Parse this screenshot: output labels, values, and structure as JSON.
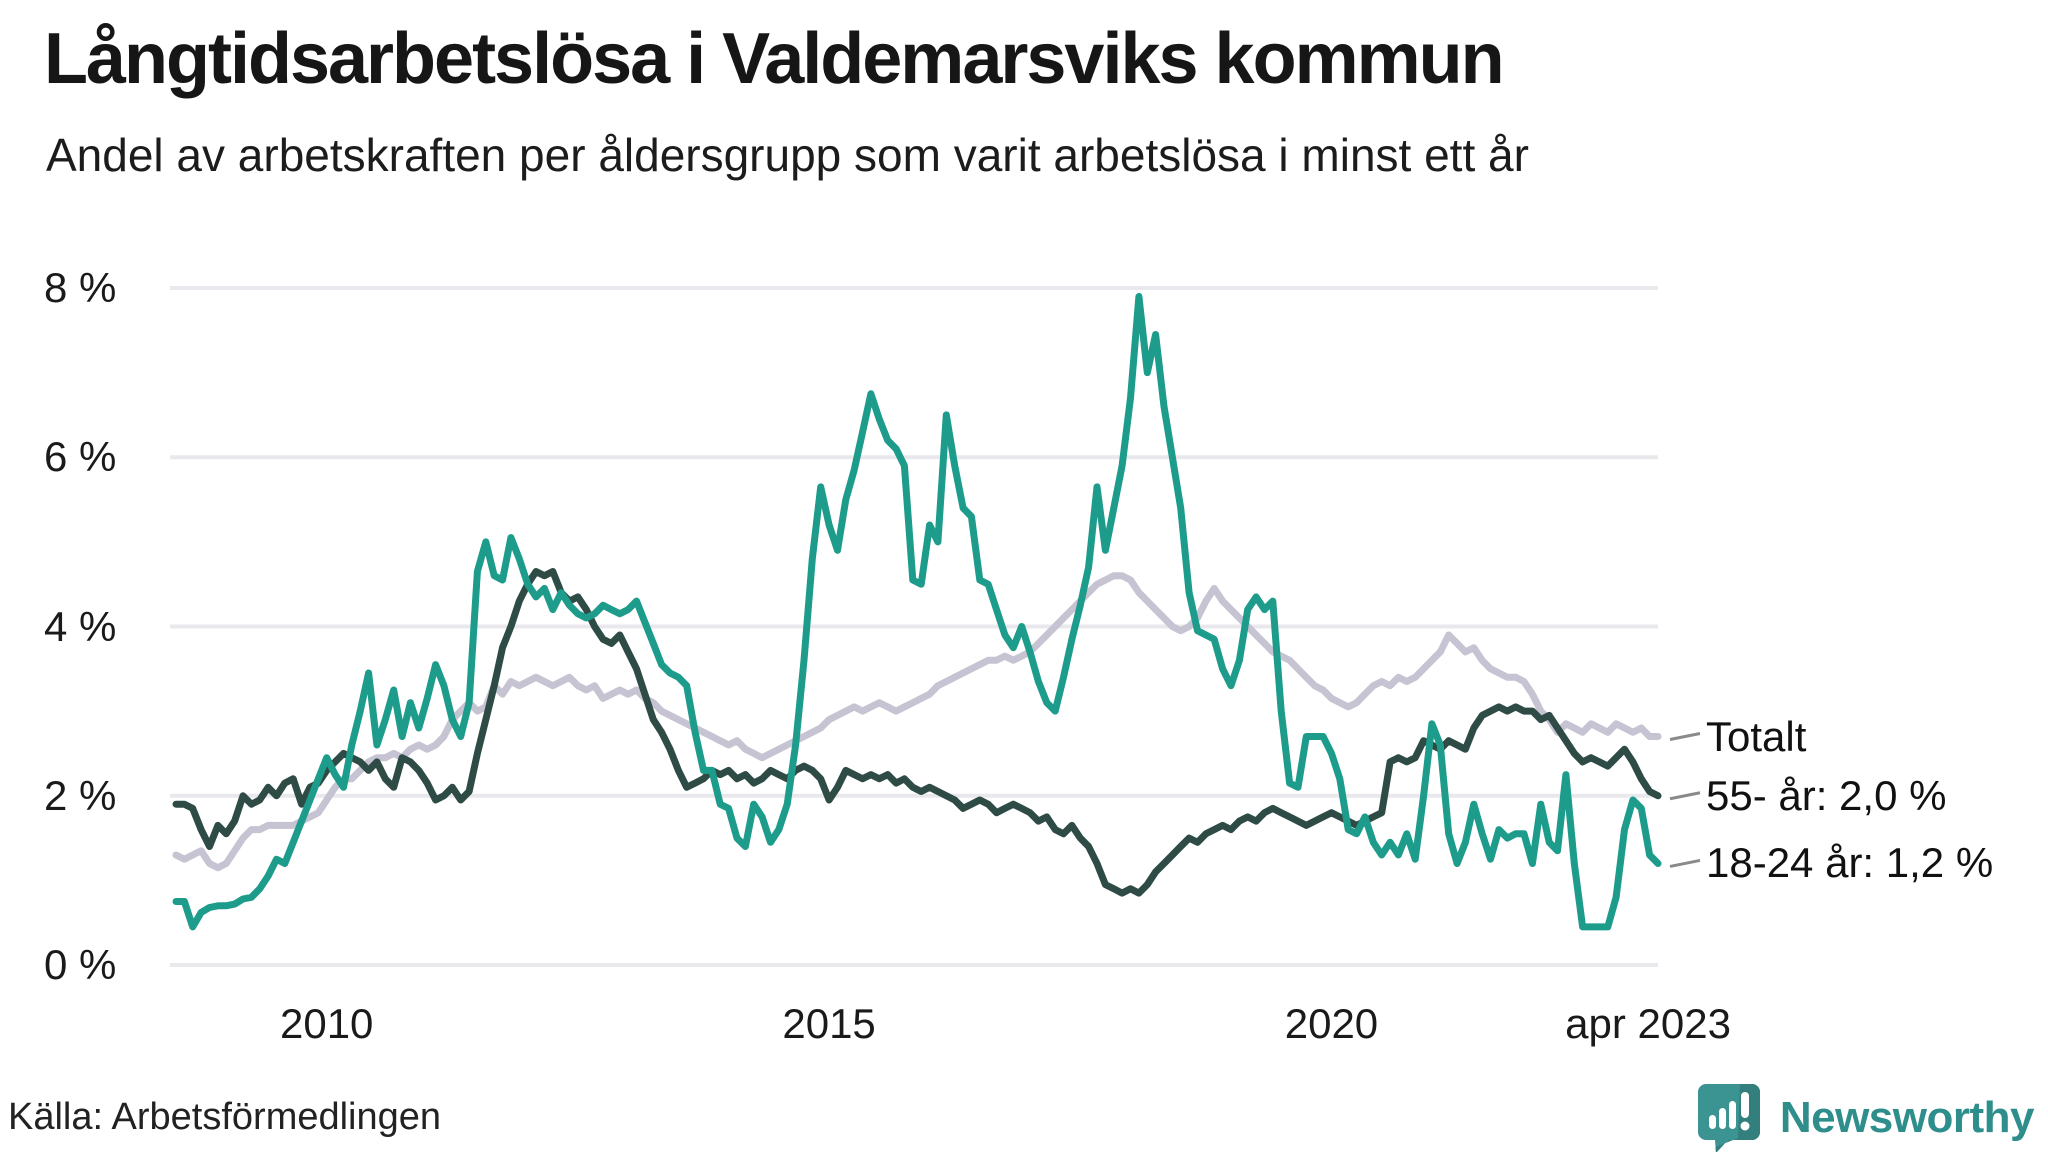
{
  "page": {
    "title": "Långtidsarbetslösa i Valdemarsviks kommun",
    "subtitle": "Andel av arbetskraften per åldersgrupp som varit arbetslösa i minst ett år",
    "source": "Källa: Arbetsförmedlingen",
    "brand_name": "Newsworthy"
  },
  "colors": {
    "background": "#ffffff",
    "text": "#1a1a1a",
    "gridline": "#e9e9ed",
    "leader_dash": "#8a8a8a",
    "series_total": "#c6c3d2",
    "series_55": "#2f4b45",
    "series_18_24": "#1e9c8b",
    "brand_teal": "#3b9492",
    "brand_text_teal": "#2e8e8b"
  },
  "chart_data": {
    "type": "line",
    "title": "Långtidsarbetslösa i Valdemarsviks kommun",
    "subtitle": "Andel av arbetskraften per åldersgrupp som varit arbetslösa i minst ett år",
    "unit": "%",
    "ylim": [
      0,
      8
    ],
    "grid": "horizontal",
    "legend_position": "right-end-labels",
    "frequency": "monthly",
    "x_start": "2008-07",
    "x_end": "2023-04",
    "y_ticks": [
      {
        "value": 8,
        "label": "8 %"
      },
      {
        "value": 6,
        "label": "6 %"
      },
      {
        "value": 4,
        "label": "4 %"
      },
      {
        "value": 2,
        "label": "2 %"
      },
      {
        "value": 0,
        "label": "0 %"
      }
    ],
    "x_ticks": [
      {
        "label": "2010",
        "month_index": 18
      },
      {
        "label": "2015",
        "month_index": 78
      },
      {
        "label": "2020",
        "month_index": 138
      },
      {
        "label": "apr 2023",
        "month_index": 177
      }
    ],
    "series": [
      {
        "name": "Totalt",
        "end_label": "Totalt",
        "end_value": 2.7,
        "color": "#c6c3d2",
        "values": [
          1.3,
          1.25,
          1.3,
          1.35,
          1.2,
          1.15,
          1.2,
          1.35,
          1.5,
          1.6,
          1.6,
          1.65,
          1.65,
          1.65,
          1.65,
          1.7,
          1.75,
          1.8,
          1.95,
          2.1,
          2.2,
          2.2,
          2.3,
          2.4,
          2.45,
          2.45,
          2.5,
          2.45,
          2.55,
          2.6,
          2.55,
          2.6,
          2.7,
          2.9,
          3.0,
          3.1,
          3.0,
          3.05,
          3.3,
          3.2,
          3.35,
          3.3,
          3.35,
          3.4,
          3.35,
          3.3,
          3.35,
          3.4,
          3.3,
          3.25,
          3.3,
          3.15,
          3.2,
          3.25,
          3.2,
          3.25,
          3.15,
          3.1,
          3.0,
          2.95,
          2.9,
          2.85,
          2.8,
          2.75,
          2.7,
          2.65,
          2.6,
          2.65,
          2.55,
          2.5,
          2.45,
          2.5,
          2.55,
          2.6,
          2.65,
          2.7,
          2.75,
          2.8,
          2.9,
          2.95,
          3.0,
          3.05,
          3.0,
          3.05,
          3.1,
          3.05,
          3.0,
          3.05,
          3.1,
          3.15,
          3.2,
          3.3,
          3.35,
          3.4,
          3.45,
          3.5,
          3.55,
          3.6,
          3.6,
          3.65,
          3.6,
          3.65,
          3.7,
          3.8,
          3.9,
          4.0,
          4.1,
          4.2,
          4.3,
          4.4,
          4.5,
          4.55,
          4.6,
          4.6,
          4.55,
          4.4,
          4.3,
          4.2,
          4.1,
          4.0,
          3.95,
          4.0,
          4.1,
          4.3,
          4.45,
          4.3,
          4.2,
          4.1,
          4.0,
          3.9,
          3.8,
          3.7,
          3.65,
          3.6,
          3.5,
          3.4,
          3.3,
          3.25,
          3.15,
          3.1,
          3.05,
          3.1,
          3.2,
          3.3,
          3.35,
          3.3,
          3.4,
          3.35,
          3.4,
          3.5,
          3.6,
          3.7,
          3.9,
          3.8,
          3.7,
          3.75,
          3.6,
          3.5,
          3.45,
          3.4,
          3.4,
          3.35,
          3.2,
          3.0,
          2.9,
          2.75,
          2.85,
          2.8,
          2.75,
          2.85,
          2.8,
          2.75,
          2.85,
          2.8,
          2.75,
          2.8,
          2.7,
          2.7
        ]
      },
      {
        "name": "55- år",
        "end_label": "55- år: 2,0 %",
        "end_value": 2.0,
        "color": "#2f4b45",
        "values": [
          1.9,
          1.9,
          1.85,
          1.6,
          1.4,
          1.65,
          1.55,
          1.7,
          2.0,
          1.9,
          1.95,
          2.1,
          2.0,
          2.15,
          2.2,
          1.9,
          2.1,
          2.15,
          2.3,
          2.4,
          2.5,
          2.45,
          2.4,
          2.3,
          2.4,
          2.2,
          2.1,
          2.45,
          2.4,
          2.3,
          2.15,
          1.95,
          2.0,
          2.1,
          1.95,
          2.05,
          2.5,
          2.9,
          3.3,
          3.75,
          4.0,
          4.3,
          4.5,
          4.65,
          4.6,
          4.65,
          4.4,
          4.3,
          4.35,
          4.2,
          4.0,
          3.85,
          3.8,
          3.9,
          3.7,
          3.5,
          3.2,
          2.9,
          2.75,
          2.55,
          2.3,
          2.1,
          2.15,
          2.2,
          2.3,
          2.25,
          2.3,
          2.2,
          2.25,
          2.15,
          2.2,
          2.3,
          2.25,
          2.2,
          2.3,
          2.35,
          2.3,
          2.2,
          1.95,
          2.1,
          2.3,
          2.25,
          2.2,
          2.25,
          2.2,
          2.25,
          2.15,
          2.2,
          2.1,
          2.05,
          2.1,
          2.05,
          2.0,
          1.95,
          1.85,
          1.9,
          1.95,
          1.9,
          1.8,
          1.85,
          1.9,
          1.85,
          1.8,
          1.7,
          1.75,
          1.6,
          1.55,
          1.65,
          1.5,
          1.4,
          1.2,
          0.95,
          0.9,
          0.85,
          0.9,
          0.85,
          0.95,
          1.1,
          1.2,
          1.3,
          1.4,
          1.5,
          1.45,
          1.55,
          1.6,
          1.65,
          1.6,
          1.7,
          1.75,
          1.7,
          1.8,
          1.85,
          1.8,
          1.75,
          1.7,
          1.65,
          1.7,
          1.75,
          1.8,
          1.75,
          1.7,
          1.65,
          1.7,
          1.75,
          1.8,
          2.4,
          2.45,
          2.4,
          2.45,
          2.65,
          2.6,
          2.55,
          2.65,
          2.6,
          2.55,
          2.8,
          2.95,
          3.0,
          3.05,
          3.0,
          3.05,
          3.0,
          3.0,
          2.9,
          2.95,
          2.8,
          2.65,
          2.5,
          2.4,
          2.45,
          2.4,
          2.35,
          2.45,
          2.55,
          2.4,
          2.2,
          2.05,
          2.0
        ]
      },
      {
        "name": "18-24 år",
        "end_label": "18-24 år: 1,2 %",
        "end_value": 1.2,
        "color": "#1e9c8b",
        "values": [
          0.75,
          0.75,
          0.45,
          0.62,
          0.68,
          0.7,
          0.7,
          0.72,
          0.78,
          0.8,
          0.9,
          1.05,
          1.25,
          1.2,
          1.45,
          1.7,
          1.95,
          2.2,
          2.45,
          2.25,
          2.1,
          2.6,
          3.0,
          3.45,
          2.6,
          2.9,
          3.25,
          2.7,
          3.1,
          2.8,
          3.15,
          3.55,
          3.3,
          2.9,
          2.7,
          3.1,
          4.65,
          5.0,
          4.6,
          4.55,
          5.05,
          4.8,
          4.5,
          4.35,
          4.45,
          4.2,
          4.4,
          4.25,
          4.15,
          4.1,
          4.15,
          4.25,
          4.2,
          4.15,
          4.2,
          4.3,
          4.05,
          3.8,
          3.55,
          3.45,
          3.4,
          3.3,
          2.75,
          2.3,
          2.3,
          1.9,
          1.85,
          1.5,
          1.4,
          1.9,
          1.75,
          1.45,
          1.6,
          1.9,
          2.6,
          3.6,
          4.8,
          5.65,
          5.2,
          4.9,
          5.5,
          5.85,
          6.3,
          6.75,
          6.45,
          6.2,
          6.1,
          5.9,
          4.55,
          4.5,
          5.2,
          5.0,
          6.5,
          5.9,
          5.4,
          5.3,
          4.55,
          4.5,
          4.2,
          3.9,
          3.75,
          4.0,
          3.7,
          3.35,
          3.1,
          3.0,
          3.4,
          3.85,
          4.25,
          4.7,
          5.65,
          4.9,
          5.4,
          5.9,
          6.7,
          7.9,
          7.0,
          7.45,
          6.6,
          6.0,
          5.4,
          4.4,
          3.95,
          3.9,
          3.85,
          3.5,
          3.3,
          3.6,
          4.2,
          4.35,
          4.2,
          4.3,
          3.0,
          2.15,
          2.1,
          2.7,
          2.7,
          2.7,
          2.5,
          2.2,
          1.6,
          1.55,
          1.75,
          1.45,
          1.3,
          1.45,
          1.3,
          1.55,
          1.25,
          2.0,
          2.85,
          2.6,
          1.55,
          1.2,
          1.45,
          1.9,
          1.55,
          1.25,
          1.6,
          1.5,
          1.55,
          1.55,
          1.2,
          1.9,
          1.45,
          1.35,
          2.25,
          1.2,
          0.45,
          0.45,
          0.45,
          0.45,
          0.8,
          1.6,
          1.95,
          1.85,
          1.3,
          1.2
        ]
      }
    ]
  }
}
